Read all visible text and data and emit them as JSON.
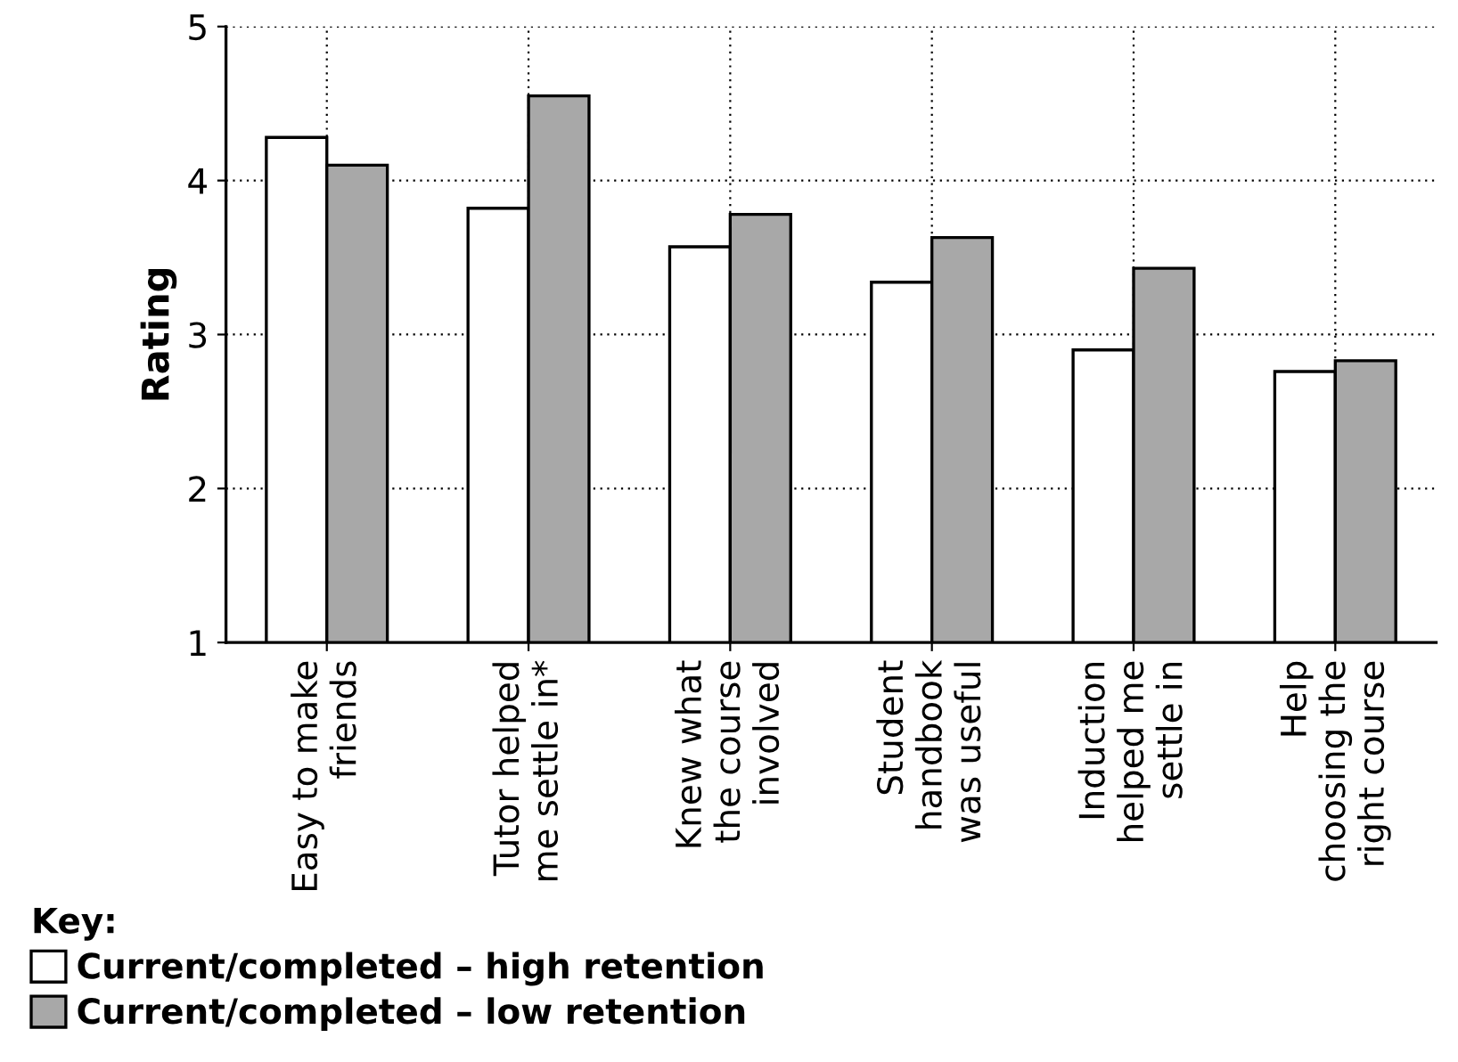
{
  "chart_data": {
    "type": "bar",
    "ylabel": "Rating",
    "legend_title": "Key:",
    "categories": [
      "Easy to make\nfriends",
      "Tutor helped\nme settle in*",
      "Knew what\nthe course\ninvolved",
      "Student\nhandbook\nwas useful",
      "Induction\nhelped me\nsettle in",
      "Help\nchoosing the\nright course"
    ],
    "series": [
      {
        "name": "Current/completed – high retention",
        "color": "#ffffff",
        "values": [
          4.28,
          3.82,
          3.57,
          3.34,
          2.9,
          2.76
        ]
      },
      {
        "name": "Current/completed – low retention",
        "color": "#a8a8a8",
        "values": [
          4.1,
          4.55,
          3.78,
          3.63,
          3.43,
          2.83
        ]
      }
    ],
    "ylim": [
      1,
      5
    ],
    "yticks": [
      1,
      2,
      3,
      4,
      5
    ],
    "grid": true,
    "legend": "bottom left"
  }
}
